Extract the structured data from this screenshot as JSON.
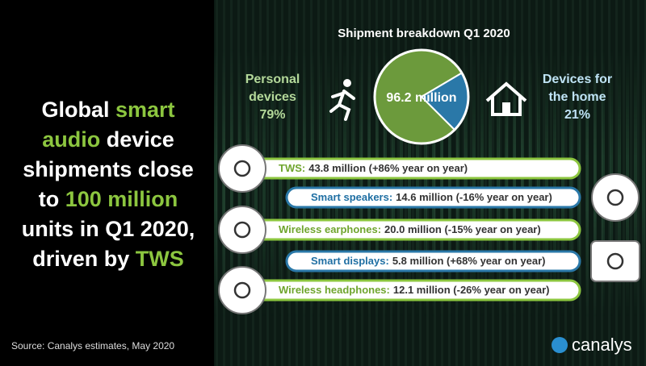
{
  "headline": [
    {
      "text": "Global ",
      "highlight": false
    },
    {
      "text": "smart audio",
      "highlight": true
    },
    {
      "text": " device shipments close to ",
      "highlight": false
    },
    {
      "text": "100 million",
      "highlight": true
    },
    {
      "text": " units in Q1 2020, driven by ",
      "highlight": false
    },
    {
      "text": "TWS",
      "highlight": true
    }
  ],
  "chart_data": {
    "type": "pie",
    "title": "Shipment breakdown Q1 2020",
    "center_label": "96.2 million",
    "categories": [
      "Personal devices",
      "Devices for the home"
    ],
    "values": [
      79,
      21
    ],
    "value_labels": [
      "79%",
      "21%"
    ],
    "colors": [
      "#6c9a3c",
      "#2a78a8"
    ]
  },
  "segments": [
    {
      "label": "TWS:",
      "detail": "43.8 million (+86% year on year)",
      "group": "personal"
    },
    {
      "label": "Smart speakers:",
      "detail": "14.6 million (-16% year on year)",
      "group": "home"
    },
    {
      "label": "Wireless earphones:",
      "detail": "20.0 million (-15% year on year)",
      "group": "personal"
    },
    {
      "label": "Smart displays:",
      "detail": "5.8 million (+68% year on year)",
      "group": "home"
    },
    {
      "label": "Wireless headphones:",
      "detail": "12.1 million (-26% year on year)",
      "group": "personal"
    }
  ],
  "source": "Source:  Canalys estimates, May 2020",
  "logo": "canalys"
}
